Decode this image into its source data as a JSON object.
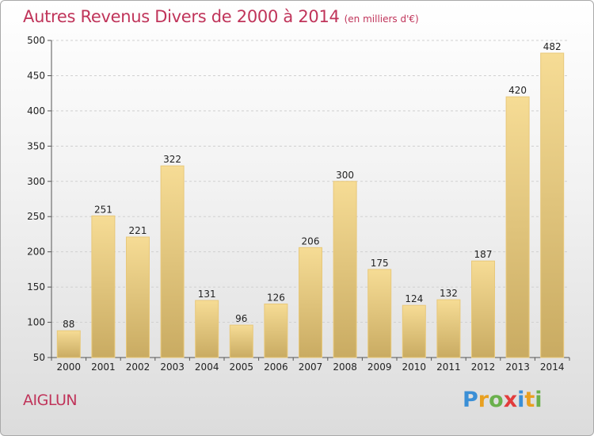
{
  "title": "Autres Revenus Divers de 2000 à 2014",
  "unit": "(en milliers d'€)",
  "place": "AIGLUN",
  "logo": {
    "text": "Proxiti",
    "letters": [
      {
        "ch": "P",
        "color": "#3a8fd6"
      },
      {
        "ch": "r",
        "color": "#e8a020"
      },
      {
        "ch": "o",
        "color": "#6ab04c"
      },
      {
        "ch": "x",
        "color": "#e23c3c"
      },
      {
        "ch": "i",
        "color": "#3a8fd6"
      },
      {
        "ch": "t",
        "color": "#e8a020"
      },
      {
        "ch": "i",
        "color": "#6ab04c"
      }
    ]
  },
  "colors": {
    "title": "#c0345a",
    "bar_top": "#f6dc95",
    "bar_bottom": "#c9ab62",
    "bar_edge": "#e8c87a"
  },
  "chart_data": {
    "type": "bar",
    "categories": [
      "2000",
      "2001",
      "2002",
      "2003",
      "2004",
      "2005",
      "2006",
      "2007",
      "2008",
      "2009",
      "2010",
      "2011",
      "2012",
      "2013",
      "2014"
    ],
    "values": [
      88,
      251,
      221,
      322,
      131,
      96,
      126,
      206,
      300,
      175,
      124,
      132,
      187,
      420,
      482
    ],
    "ylim": [
      50,
      500
    ],
    "yticks": [
      50,
      100,
      150,
      200,
      250,
      300,
      350,
      400,
      450,
      500
    ],
    "grid": true,
    "legend": "none"
  }
}
